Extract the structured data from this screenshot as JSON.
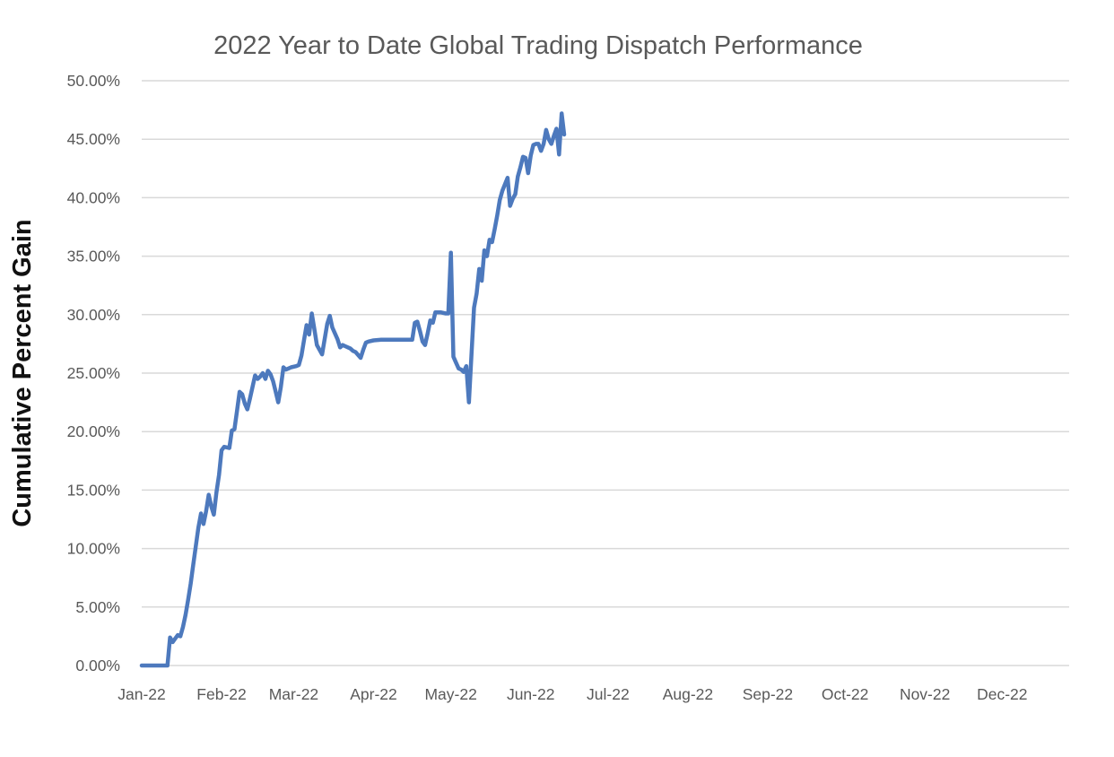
{
  "chart_data": {
    "type": "line",
    "title": "2022 Year to Date Global Trading Dispatch Performance",
    "xlabel": "",
    "ylabel": "Cumulative Percent Gain",
    "legend": "none",
    "grid": "horizontal",
    "ylim": [
      0,
      50
    ],
    "xlim_days": [
      0,
      360
    ],
    "x_unit": "day of year 2022 (0 = Jan 1)",
    "y_tick_step": 5,
    "y_ticks": [
      {
        "value": 0,
        "label": "0.00%"
      },
      {
        "value": 5,
        "label": "5.00%"
      },
      {
        "value": 10,
        "label": "10.00%"
      },
      {
        "value": 15,
        "label": "15.00%"
      },
      {
        "value": 20,
        "label": "20.00%"
      },
      {
        "value": 25,
        "label": "25.00%"
      },
      {
        "value": 30,
        "label": "30.00%"
      },
      {
        "value": 35,
        "label": "35.00%"
      },
      {
        "value": 40,
        "label": "40.00%"
      },
      {
        "value": 45,
        "label": "45.00%"
      },
      {
        "value": 50,
        "label": "50.00%"
      }
    ],
    "x_ticks": [
      {
        "day": 0,
        "label": "Jan-22"
      },
      {
        "day": 31,
        "label": "Feb-22"
      },
      {
        "day": 59,
        "label": "Mar-22"
      },
      {
        "day": 90,
        "label": "Apr-22"
      },
      {
        "day": 120,
        "label": "May-22"
      },
      {
        "day": 151,
        "label": "Jun-22"
      },
      {
        "day": 181,
        "label": "Jul-22"
      },
      {
        "day": 212,
        "label": "Aug-22"
      },
      {
        "day": 243,
        "label": "Sep-22"
      },
      {
        "day": 273,
        "label": "Oct-22"
      },
      {
        "day": 304,
        "label": "Nov-22"
      },
      {
        "day": 334,
        "label": "Dec-22"
      }
    ],
    "series": [
      {
        "name": "Cumulative Percent Gain",
        "color": "#4d79bd",
        "stroke_width": 4.5,
        "points": [
          [
            0,
            0
          ],
          [
            3,
            0
          ],
          [
            6,
            0
          ],
          [
            9,
            0
          ],
          [
            10,
            0
          ],
          [
            11,
            2.4
          ],
          [
            12,
            2.0
          ],
          [
            13,
            2.3
          ],
          [
            14,
            2.6
          ],
          [
            15,
            2.5
          ],
          [
            16,
            3.3
          ],
          [
            17,
            4.3
          ],
          [
            18,
            5.6
          ],
          [
            19,
            7.0
          ],
          [
            20,
            8.6
          ],
          [
            21,
            10.2
          ],
          [
            22,
            11.8
          ],
          [
            23,
            13.0
          ],
          [
            24,
            12.1
          ],
          [
            25,
            13.2
          ],
          [
            26,
            14.6
          ],
          [
            27,
            13.6
          ],
          [
            28,
            12.9
          ],
          [
            29,
            14.8
          ],
          [
            30,
            16.3
          ],
          [
            31,
            18.4
          ],
          [
            32,
            18.7
          ],
          [
            34,
            18.6
          ],
          [
            35,
            20.1
          ],
          [
            36,
            20.2
          ],
          [
            37,
            21.8
          ],
          [
            38,
            23.4
          ],
          [
            39,
            23.2
          ],
          [
            40,
            22.4
          ],
          [
            41,
            21.9
          ],
          [
            42,
            22.8
          ],
          [
            43,
            23.8
          ],
          [
            44,
            24.8
          ],
          [
            45,
            24.5
          ],
          [
            46,
            24.7
          ],
          [
            47,
            25.0
          ],
          [
            48,
            24.5
          ],
          [
            49,
            25.2
          ],
          [
            50,
            24.9
          ],
          [
            51,
            24.3
          ],
          [
            52,
            23.4
          ],
          [
            53,
            22.5
          ],
          [
            54,
            23.8
          ],
          [
            55,
            25.5
          ],
          [
            56,
            25.3
          ],
          [
            57,
            25.4
          ],
          [
            58,
            25.5
          ],
          [
            60,
            25.6
          ],
          [
            61,
            25.7
          ],
          [
            62,
            26.5
          ],
          [
            63,
            27.8
          ],
          [
            64,
            29.1
          ],
          [
            65,
            28.3
          ],
          [
            66,
            30.1
          ],
          [
            67,
            28.8
          ],
          [
            68,
            27.4
          ],
          [
            70,
            26.6
          ],
          [
            72,
            29.2
          ],
          [
            73,
            29.9
          ],
          [
            74,
            28.9
          ],
          [
            76,
            27.9
          ],
          [
            77,
            27.2
          ],
          [
            78,
            27.4
          ],
          [
            79,
            27.3
          ],
          [
            81,
            27.1
          ],
          [
            82,
            26.9
          ],
          [
            83,
            26.8
          ],
          [
            85,
            26.3
          ],
          [
            86,
            27.0
          ],
          [
            87,
            27.6
          ],
          [
            88,
            27.7
          ],
          [
            90,
            27.8
          ],
          [
            93,
            27.85
          ],
          [
            97,
            27.85
          ],
          [
            101,
            27.85
          ],
          [
            105,
            27.85
          ],
          [
            106,
            29.3
          ],
          [
            107,
            29.4
          ],
          [
            108,
            28.6
          ],
          [
            109,
            27.7
          ],
          [
            110,
            27.4
          ],
          [
            111,
            28.4
          ],
          [
            112,
            29.5
          ],
          [
            113,
            29.3
          ],
          [
            114,
            30.2
          ],
          [
            116,
            30.2
          ],
          [
            118,
            30.1
          ],
          [
            119,
            30.1
          ],
          [
            120,
            35.3
          ],
          [
            121,
            26.4
          ],
          [
            122,
            25.9
          ],
          [
            123,
            25.4
          ],
          [
            124,
            25.3
          ],
          [
            125,
            25.1
          ],
          [
            126,
            25.6
          ],
          [
            127,
            22.5
          ],
          [
            128,
            26.5
          ],
          [
            129,
            30.6
          ],
          [
            130,
            31.8
          ],
          [
            131,
            33.9
          ],
          [
            132,
            32.9
          ],
          [
            133,
            35.5
          ],
          [
            134,
            35.0
          ],
          [
            135,
            36.4
          ],
          [
            136,
            36.2
          ],
          [
            137,
            37.3
          ],
          [
            138,
            38.5
          ],
          [
            139,
            39.8
          ],
          [
            140,
            40.6
          ],
          [
            142,
            41.7
          ],
          [
            143,
            39.3
          ],
          [
            144,
            39.9
          ],
          [
            145,
            40.3
          ],
          [
            146,
            41.8
          ],
          [
            147,
            42.6
          ],
          [
            148,
            43.5
          ],
          [
            149,
            43.4
          ],
          [
            150,
            42.1
          ],
          [
            151,
            43.6
          ],
          [
            152,
            44.5
          ],
          [
            153,
            44.6
          ],
          [
            154,
            44.6
          ],
          [
            155,
            44.0
          ],
          [
            156,
            44.6
          ],
          [
            157,
            45.8
          ],
          [
            158,
            45.0
          ],
          [
            159,
            44.6
          ],
          [
            160,
            45.3
          ],
          [
            161,
            45.9
          ],
          [
            162,
            43.7
          ],
          [
            163,
            47.2
          ],
          [
            164,
            45.4
          ]
        ]
      }
    ]
  },
  "colors": {
    "background": "#ffffff",
    "line": "#4d79bd",
    "gridline": "#d9d9d9",
    "tick_label": "#595959",
    "title": "#595959",
    "axis_title": "#111111"
  }
}
